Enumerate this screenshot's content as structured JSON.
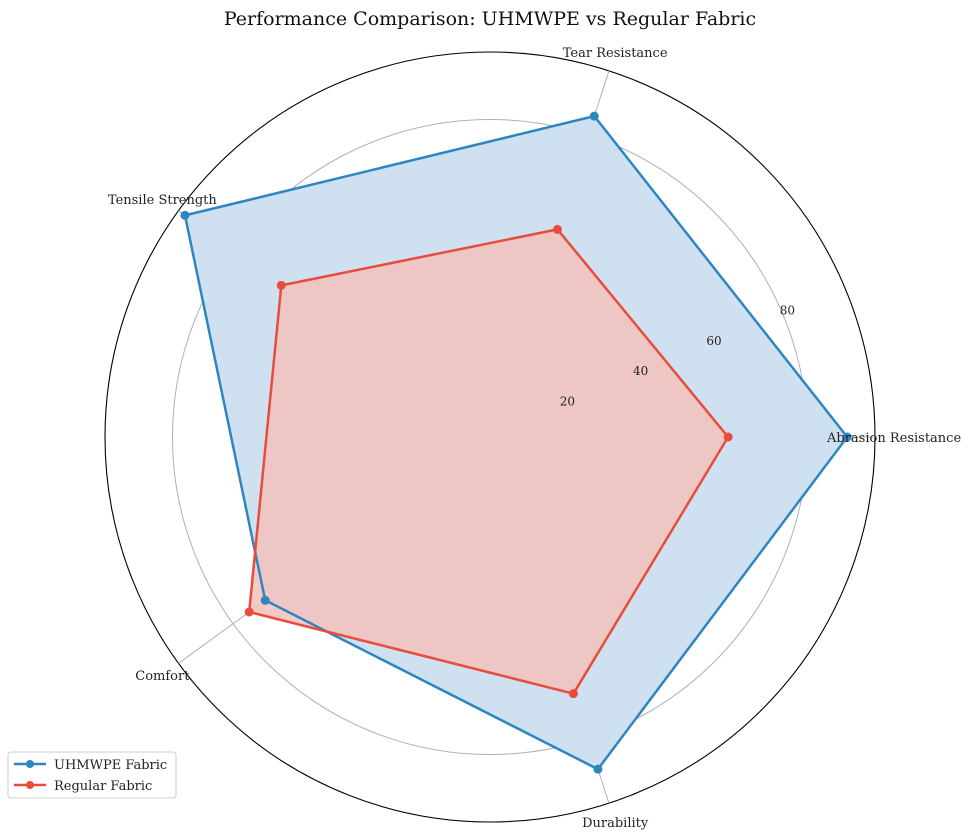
{
  "chart_data": {
    "type": "radar",
    "title": "Performance Comparison: UHMWPE vs Regular Fabric",
    "categories": [
      "Abrasion Resistance",
      "Tear Resistance",
      "Tensile Strength",
      "Comfort",
      "Durability"
    ],
    "rlim": [
      0,
      97
    ],
    "rticks": [
      20,
      40,
      60,
      80
    ],
    "rtick_labels": [
      "20",
      "40",
      "60",
      "80"
    ],
    "grid": true,
    "legend_position": "lower-left",
    "series": [
      {
        "name": "UHMWPE Fabric",
        "values": [
          90,
          85,
          95,
          70,
          88
        ],
        "color": "#2e86c1",
        "fill": "#cfe1f0"
      },
      {
        "name": "Regular Fabric",
        "values": [
          60,
          55,
          65,
          75,
          68
        ],
        "color": "#e74c3c",
        "fill": "#f3c1bc"
      }
    ]
  }
}
